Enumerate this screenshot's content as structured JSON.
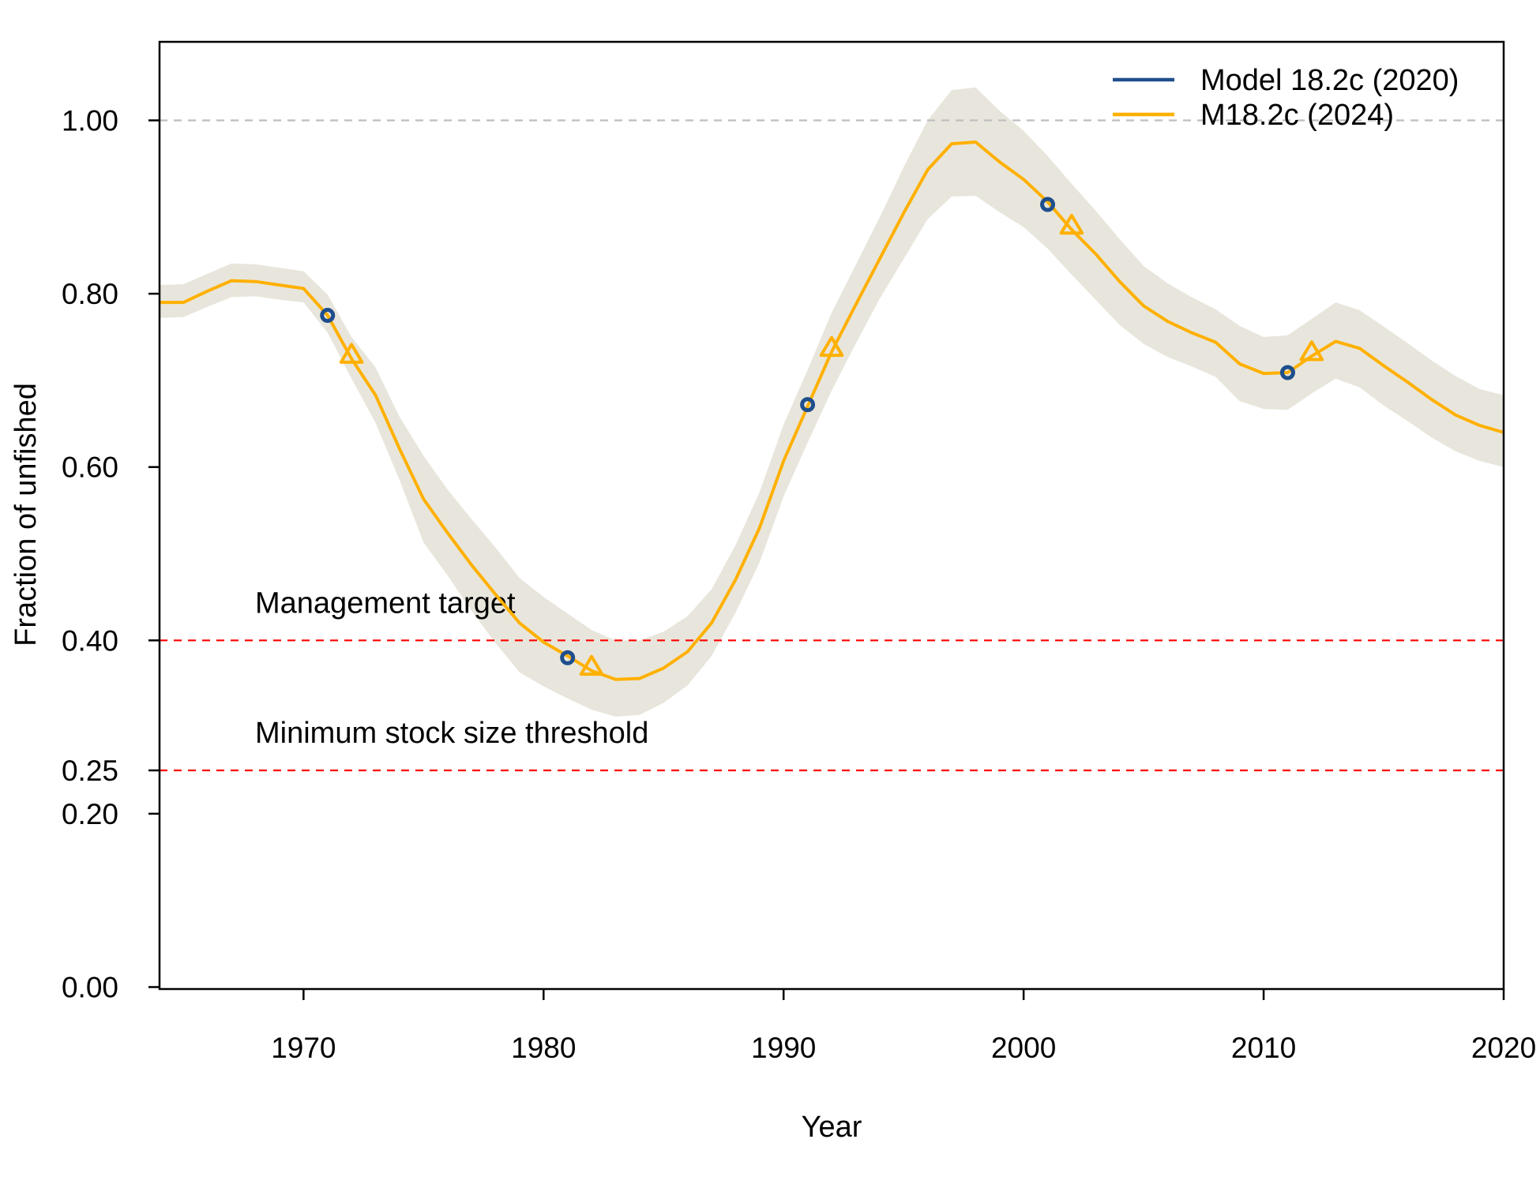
{
  "chart_data": {
    "type": "line",
    "title": "",
    "xlabel": "Year",
    "ylabel": "Fraction of unfished",
    "xlim": [
      1964,
      2020
    ],
    "ylim": [
      0,
      1.09
    ],
    "x_ticks": [
      1970,
      1980,
      1990,
      2000,
      2010,
      2020
    ],
    "y_ticks": [
      0.0,
      0.2,
      0.25,
      0.4,
      0.6,
      0.8,
      1.0
    ],
    "y_tick_labels": [
      "0.00",
      "0.20",
      "0.25",
      "0.40",
      "0.60",
      "0.80",
      "1.00"
    ],
    "grid": false,
    "legend": {
      "position": "top-right",
      "entries": [
        "Model 18.2c (2020)",
        "M18.2c (2024)"
      ]
    },
    "reference_lines": [
      {
        "y": 1.0,
        "label": "",
        "color": "#bebebe"
      },
      {
        "y": 0.4,
        "label": "Management target",
        "color": "#ff0000"
      },
      {
        "y": 0.25,
        "label": "Minimum stock size threshold",
        "color": "#ff0000"
      }
    ],
    "series": [
      {
        "name": "Model 18.2c (2020)",
        "color": "#1f4e8c",
        "marker": "circle",
        "x": [
          1971,
          1981,
          1991,
          2001,
          2011
        ],
        "values": [
          0.775,
          0.38,
          0.672,
          0.903,
          0.709
        ]
      },
      {
        "name": "M18.2c (2024)",
        "color": "#ffb000",
        "marker": "triangle",
        "marker_x": [
          1972,
          1982,
          1992,
          2002,
          2012
        ],
        "band_color": "#e8e6dc",
        "x": [
          1964,
          1965,
          1966,
          1967,
          1968,
          1969,
          1970,
          1971,
          1972,
          1973,
          1974,
          1975,
          1976,
          1977,
          1978,
          1979,
          1980,
          1981,
          1982,
          1983,
          1984,
          1985,
          1986,
          1987,
          1988,
          1989,
          1990,
          1991,
          1992,
          1993,
          1994,
          1995,
          1996,
          1997,
          1998,
          1999,
          2000,
          2001,
          2002,
          2003,
          2004,
          2005,
          2006,
          2007,
          2008,
          2009,
          2010,
          2011,
          2012,
          2013,
          2014,
          2015,
          2016,
          2017,
          2018,
          2019,
          2020
        ],
        "values": [
          0.79,
          0.79,
          0.803,
          0.815,
          0.814,
          0.81,
          0.806,
          0.775,
          0.725,
          0.683,
          0.621,
          0.563,
          0.524,
          0.487,
          0.453,
          0.42,
          0.398,
          0.382,
          0.365,
          0.355,
          0.356,
          0.368,
          0.387,
          0.42,
          0.47,
          0.53,
          0.607,
          0.67,
          0.733,
          0.787,
          0.84,
          0.893,
          0.943,
          0.973,
          0.975,
          0.952,
          0.932,
          0.906,
          0.874,
          0.846,
          0.814,
          0.786,
          0.768,
          0.755,
          0.744,
          0.719,
          0.708,
          0.709,
          0.728,
          0.745,
          0.737,
          0.717,
          0.698,
          0.678,
          0.66,
          0.648,
          0.64
        ],
        "lower": [
          0.772,
          0.773,
          0.785,
          0.796,
          0.797,
          0.793,
          0.79,
          0.755,
          0.702,
          0.651,
          0.585,
          0.513,
          0.475,
          0.434,
          0.397,
          0.363,
          0.347,
          0.333,
          0.32,
          0.312,
          0.314,
          0.328,
          0.348,
          0.382,
          0.432,
          0.49,
          0.566,
          0.628,
          0.688,
          0.742,
          0.794,
          0.84,
          0.886,
          0.912,
          0.913,
          0.894,
          0.877,
          0.852,
          0.822,
          0.793,
          0.764,
          0.742,
          0.727,
          0.716,
          0.704,
          0.676,
          0.667,
          0.666,
          0.685,
          0.702,
          0.692,
          0.671,
          0.653,
          0.634,
          0.618,
          0.607,
          0.6
        ],
        "upper": [
          0.81,
          0.811,
          0.823,
          0.835,
          0.834,
          0.83,
          0.826,
          0.799,
          0.75,
          0.715,
          0.658,
          0.613,
          0.574,
          0.54,
          0.507,
          0.472,
          0.45,
          0.431,
          0.412,
          0.4,
          0.4,
          0.41,
          0.428,
          0.459,
          0.51,
          0.571,
          0.649,
          0.712,
          0.778,
          0.833,
          0.888,
          0.946,
          1.0,
          1.035,
          1.038,
          1.011,
          0.988,
          0.959,
          0.927,
          0.896,
          0.863,
          0.832,
          0.812,
          0.796,
          0.782,
          0.763,
          0.75,
          0.752,
          0.771,
          0.79,
          0.781,
          0.762,
          0.743,
          0.723,
          0.705,
          0.69,
          0.683
        ]
      }
    ]
  }
}
